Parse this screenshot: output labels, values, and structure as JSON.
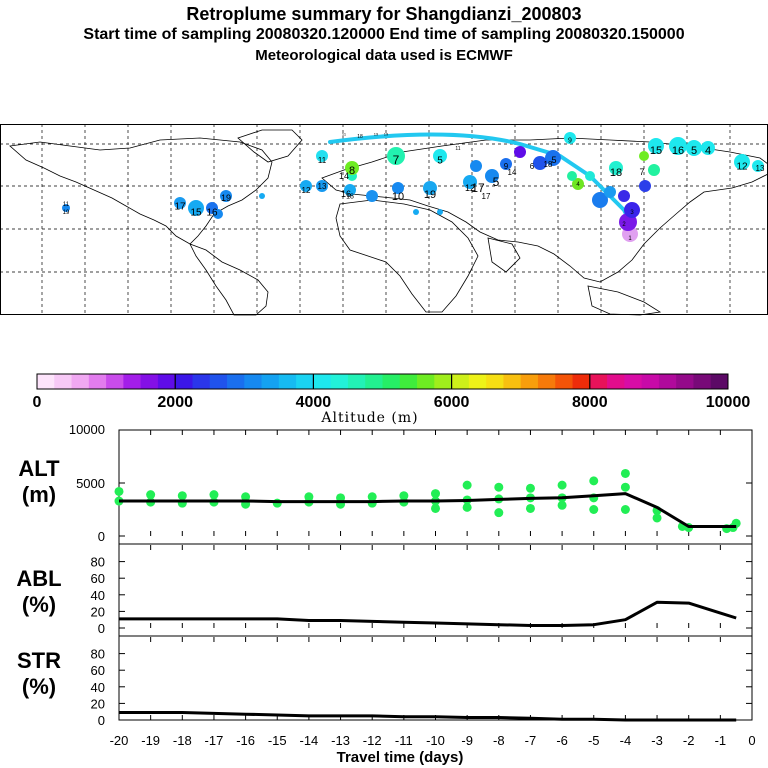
{
  "header": {
    "title": "Retroplume summary for Shangdianzi_200803",
    "line2": "Start time of sampling 20080320.120000     End time of sampling 20080320.150000",
    "line3": "Meteorological data used is ECMWF"
  },
  "colorbar": {
    "ticks": [
      "0",
      "2000",
      "4000",
      "6000",
      "8000",
      "10000"
    ],
    "title": "Altitude (m)",
    "colors": [
      "#fde4fb",
      "#f7c9f6",
      "#f0a8f2",
      "#e27cee",
      "#c94ceb",
      "#a31ee9",
      "#8410e6",
      "#5f0ce8",
      "#3b16e8",
      "#2b36ea",
      "#2053ec",
      "#1a6fee",
      "#1689f0",
      "#14a2f1",
      "#16bbf2",
      "#1ad3f2",
      "#1ee8ee",
      "#22f2d9",
      "#22f2b6",
      "#22f090",
      "#26ee66",
      "#3fec3c",
      "#6eec22",
      "#a0ee1c",
      "#cef01a",
      "#eef218",
      "#f6df14",
      "#f8c010",
      "#f89e0c",
      "#f67a0a",
      "#f45408",
      "#ee2c0a",
      "#e8125a",
      "#e20c8c",
      "#d80ca6",
      "#c80aa8",
      "#b00a9c",
      "#940a8a",
      "#780a78",
      "#5c0a66"
    ]
  },
  "map": {
    "labels": [
      "1",
      "2",
      "3",
      "4",
      "5",
      "6",
      "7",
      "8",
      "9",
      "10",
      "11",
      "12",
      "13",
      "14",
      "15",
      "16",
      "17",
      "18",
      "19",
      "20"
    ],
    "plume_color": "#22c8f0"
  },
  "panels": {
    "alt_label": "ALT\n(m)",
    "abl_label": "ABL\n(%)",
    "str_label": "STR\n(%)"
  },
  "chart_data": [
    {
      "type": "line",
      "title": "ALT (m)",
      "x": [
        -20,
        -19,
        -18,
        -17,
        -16,
        -15,
        -14,
        -13,
        -12,
        -11,
        -10,
        -9,
        -8,
        -7,
        -6,
        -5,
        -4,
        -3,
        -2,
        -1,
        -0.5
      ],
      "values": [
        3300,
        3300,
        3300,
        3300,
        3300,
        3250,
        3250,
        3250,
        3250,
        3300,
        3300,
        3350,
        3450,
        3550,
        3600,
        3800,
        4000,
        2700,
        900,
        900,
        900
      ],
      "scatter_points": [
        [
          -20,
          3300
        ],
        [
          -20,
          4200
        ],
        [
          -19,
          3200
        ],
        [
          -19,
          3900
        ],
        [
          -18,
          3100
        ],
        [
          -18,
          3800
        ],
        [
          -17,
          3200
        ],
        [
          -17,
          3900
        ],
        [
          -16,
          3000
        ],
        [
          -16,
          3700
        ],
        [
          -15,
          3100
        ],
        [
          -14,
          3200
        ],
        [
          -14,
          3700
        ],
        [
          -13,
          3000
        ],
        [
          -13,
          3600
        ],
        [
          -12,
          3100
        ],
        [
          -12,
          3700
        ],
        [
          -11,
          3200
        ],
        [
          -11,
          3800
        ],
        [
          -10,
          3300
        ],
        [
          -10,
          2600
        ],
        [
          -10,
          4000
        ],
        [
          -9,
          3400
        ],
        [
          -9,
          2700
        ],
        [
          -9,
          4800
        ],
        [
          -8,
          3500
        ],
        [
          -8,
          2200
        ],
        [
          -8,
          4600
        ],
        [
          -7,
          3600
        ],
        [
          -7,
          2600
        ],
        [
          -7,
          4500
        ],
        [
          -6,
          3600
        ],
        [
          -6,
          2900
        ],
        [
          -6,
          4800
        ],
        [
          -5,
          3600
        ],
        [
          -5,
          5200
        ],
        [
          -5,
          2500
        ],
        [
          -4,
          2500
        ],
        [
          -4,
          4600
        ],
        [
          -4,
          5900
        ],
        [
          -3,
          2400
        ],
        [
          -3,
          1700
        ],
        [
          -2.2,
          900
        ],
        [
          -2,
          800
        ],
        [
          -0.8,
          700
        ],
        [
          -0.6,
          800
        ],
        [
          -0.5,
          1200
        ]
      ],
      "xlim": [
        -20,
        0
      ],
      "ylim": [
        0,
        10000
      ],
      "yticks": [
        "0",
        "5000",
        "10000"
      ],
      "point_color": "#22ee55"
    },
    {
      "type": "line",
      "title": "ABL (%)",
      "x": [
        -20,
        -19,
        -18,
        -17,
        -16,
        -15,
        -14,
        -13,
        -12,
        -11,
        -10,
        -9,
        -8,
        -7,
        -6,
        -5,
        -4,
        -3,
        -2,
        -1,
        -0.5
      ],
      "values": [
        11,
        11,
        11,
        11,
        11,
        11,
        9,
        9,
        8,
        7,
        6,
        5,
        4,
        3,
        3,
        4,
        10,
        31,
        30,
        18,
        12
      ],
      "xlim": [
        -20,
        0
      ],
      "ylim": [
        0,
        100
      ],
      "yticks": [
        "0",
        "20",
        "40",
        "60",
        "80"
      ]
    },
    {
      "type": "line",
      "title": "STR (%)",
      "x": [
        -20,
        -19,
        -18,
        -17,
        -16,
        -15,
        -14,
        -13,
        -12,
        -11,
        -10,
        -9,
        -8,
        -7,
        -6,
        -5,
        -4,
        -3,
        -2,
        -1,
        -0.5
      ],
      "values": [
        9,
        9,
        9,
        8,
        7,
        6,
        5,
        5,
        5,
        4,
        4,
        3,
        3,
        2,
        1,
        1,
        0,
        0,
        0,
        0,
        0
      ],
      "xlim": [
        -20,
        0
      ],
      "ylim": [
        0,
        100
      ],
      "yticks": [
        "0",
        "20",
        "40",
        "60",
        "80"
      ],
      "xticks": [
        "-20",
        "-19",
        "-18",
        "-17",
        "-16",
        "-15",
        "-14",
        "-13",
        "-12",
        "-11",
        "-10",
        "-9",
        "-8",
        "-7",
        "-6",
        "-5",
        "-4",
        "-3",
        "-2",
        "-1",
        "0"
      ],
      "xlabel": "Travel time (days)"
    }
  ]
}
